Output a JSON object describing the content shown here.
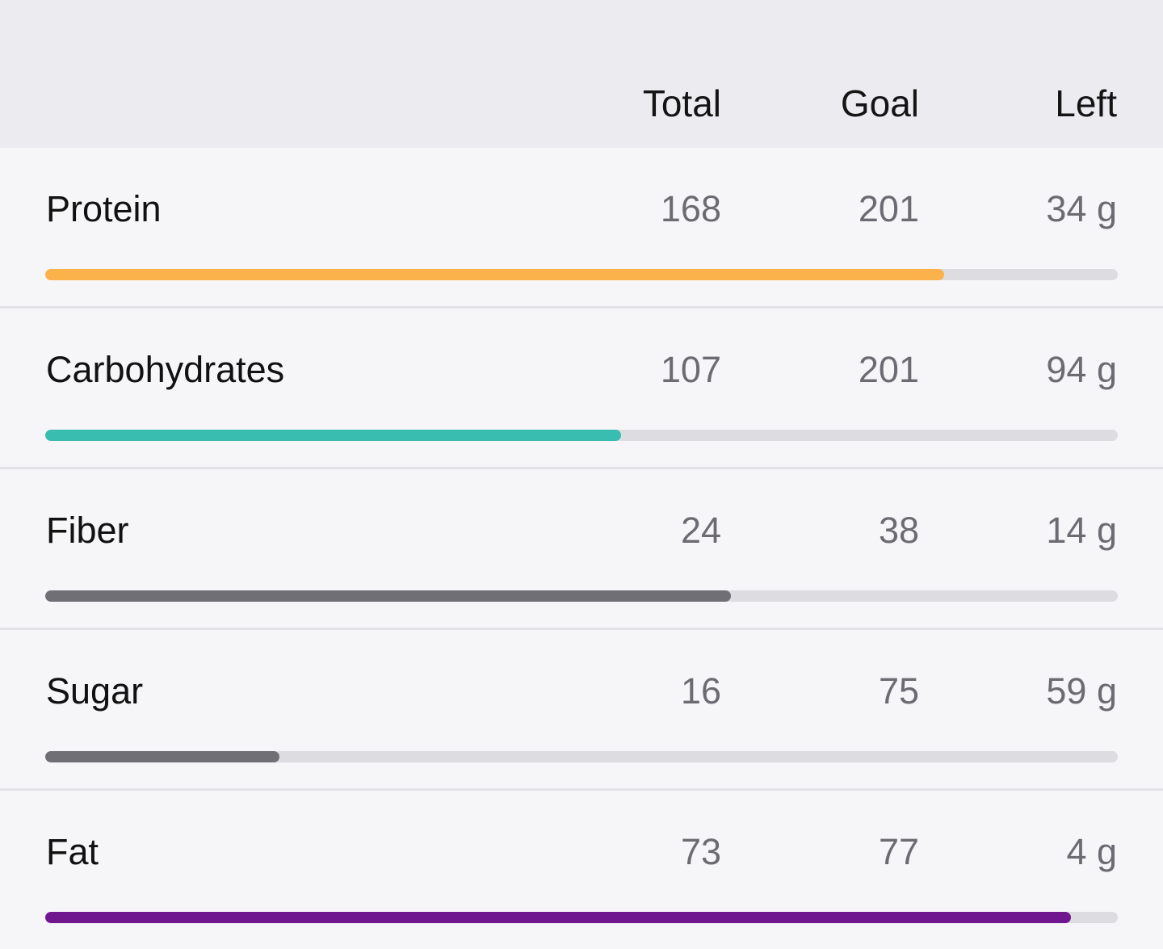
{
  "header": {
    "total_label": "Total",
    "goal_label": "Goal",
    "left_label": "Left"
  },
  "nutrients": [
    {
      "name": "Protein",
      "total": "168",
      "goal": "201",
      "left": "34 g",
      "progress": 0.838,
      "color": "#fbb24a"
    },
    {
      "name": "Carbohydrates",
      "total": "107",
      "goal": "201",
      "left": "94 g",
      "progress": 0.537,
      "color": "#38bdb0"
    },
    {
      "name": "Fiber",
      "total": "24",
      "goal": "38",
      "left": "14 g",
      "progress": 0.639,
      "color": "#6f6f75"
    },
    {
      "name": "Sugar",
      "total": "16",
      "goal": "75",
      "left": "59 g",
      "progress": 0.218,
      "color": "#6f6f75"
    },
    {
      "name": "Fat",
      "total": "73",
      "goal": "77",
      "left": "4 g",
      "progress": 0.956,
      "color": "#701790"
    }
  ]
}
